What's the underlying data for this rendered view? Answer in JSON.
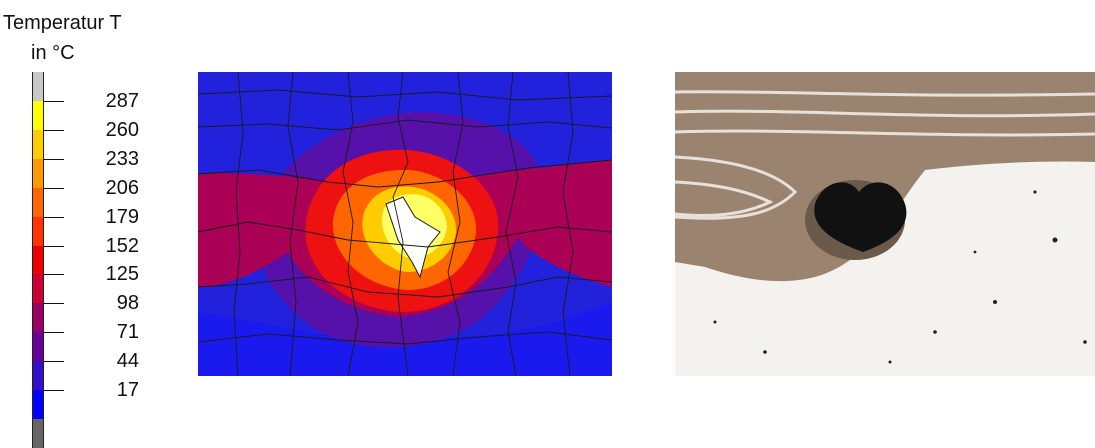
{
  "legend": {
    "title_line1": "Temperatur T",
    "title_line2": "in °C",
    "colors": [
      "#c8c8c8",
      "#ffff00",
      "#ffcc00",
      "#ff9900",
      "#ff6600",
      "#ff3300",
      "#ee0000",
      "#cc0033",
      "#990066",
      "#660099",
      "#3311cc",
      "#0000ff",
      "#666666"
    ],
    "values": [
      "287",
      "260",
      "233",
      "206",
      "179",
      "152",
      "125",
      "98",
      "71",
      "44",
      "17"
    ]
  },
  "fem_plot": {
    "colors": {
      "outer": "#2222dd",
      "band1": "#5511aa",
      "band2": "#aa0055",
      "band3": "#ee1111",
      "band4": "#ff6600",
      "band5": "#ffcc00",
      "core": "#ffff66",
      "mesh": "#1a1a1a"
    }
  },
  "micrograph": {
    "colors": {
      "background": "#f4f2ee",
      "layers": "#9a8470",
      "pore": "#111111"
    }
  }
}
